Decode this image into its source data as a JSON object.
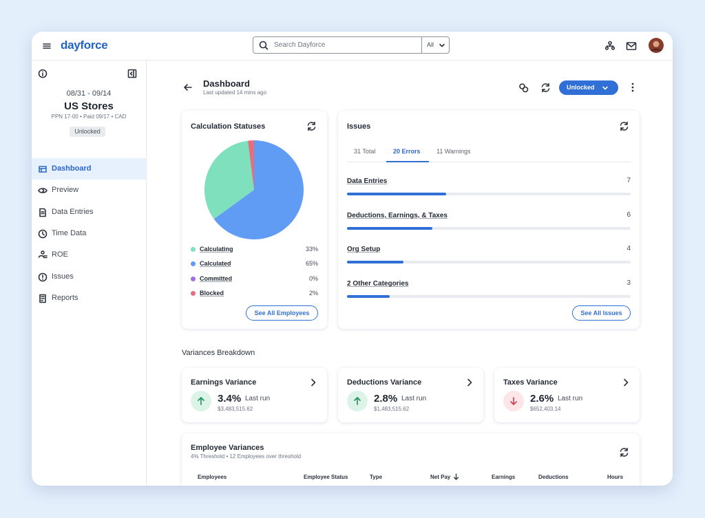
{
  "header": {
    "brand": "dayforce",
    "search_placeholder": "Search Dayforce",
    "search_scope": "All"
  },
  "sidebar": {
    "period": "08/31 - 09/14",
    "store": "US Stores",
    "details": "PPN 17-00 • Paid 09/17 • CAD",
    "status": "Unlocked",
    "nav": [
      "Dashboard",
      "Preview",
      "Data Entries",
      "Time Data",
      "ROE",
      "Issues",
      "Reports"
    ]
  },
  "page": {
    "title": "Dashboard",
    "updated": "Last updated 14 mins ago",
    "lock_button": "Unlocked"
  },
  "calculation": {
    "title": "Calculation Statuses",
    "items": [
      {
        "name": "Calculating",
        "value": 33,
        "label": "33%",
        "color": "#7fe0bd"
      },
      {
        "name": "Calculated",
        "value": 65,
        "label": "65%",
        "color": "#609cf3"
      },
      {
        "name": "Committed",
        "value": 0,
        "label": "0%",
        "color": "#a46ee0"
      },
      {
        "name": "Blocked",
        "value": 2,
        "label": "2%",
        "color": "#e2717f"
      }
    ],
    "button": "See All Employees"
  },
  "issues": {
    "title": "Issues",
    "tabs": [
      "31 Total",
      "20 Errors",
      "11 Warnings"
    ],
    "categories": [
      {
        "name": "Data Entries",
        "count": 7
      },
      {
        "name": "Deductions, Earnings, & Taxes",
        "count": 6
      },
      {
        "name": "Org Setup",
        "count": 4
      },
      {
        "name": "2 Other Categories",
        "count": 3
      }
    ],
    "button": "See All Issues"
  },
  "variances": {
    "title": "Variances Breakdown",
    "cards": [
      {
        "title": "Earnings Variance",
        "change": "3.4%",
        "direction": "up",
        "caption": "Last run",
        "amount": "$3,483,515.62"
      },
      {
        "title": "Deductions Variance",
        "change": "2.8%",
        "direction": "up",
        "caption": "Last run",
        "amount": "$1,483,515.62"
      },
      {
        "title": "Taxes Variance",
        "change": "2.6%",
        "direction": "down",
        "caption": "Last run",
        "amount": "$652,403.14"
      }
    ]
  },
  "employee_variances": {
    "title": "Employee Variances",
    "subtitle": "4% Threshold • 12 Employees over threshold",
    "columns": [
      "Employees",
      "Employee Status",
      "Type",
      "Net Pay",
      "Earnings",
      "Deductions",
      "Hours"
    ]
  }
}
